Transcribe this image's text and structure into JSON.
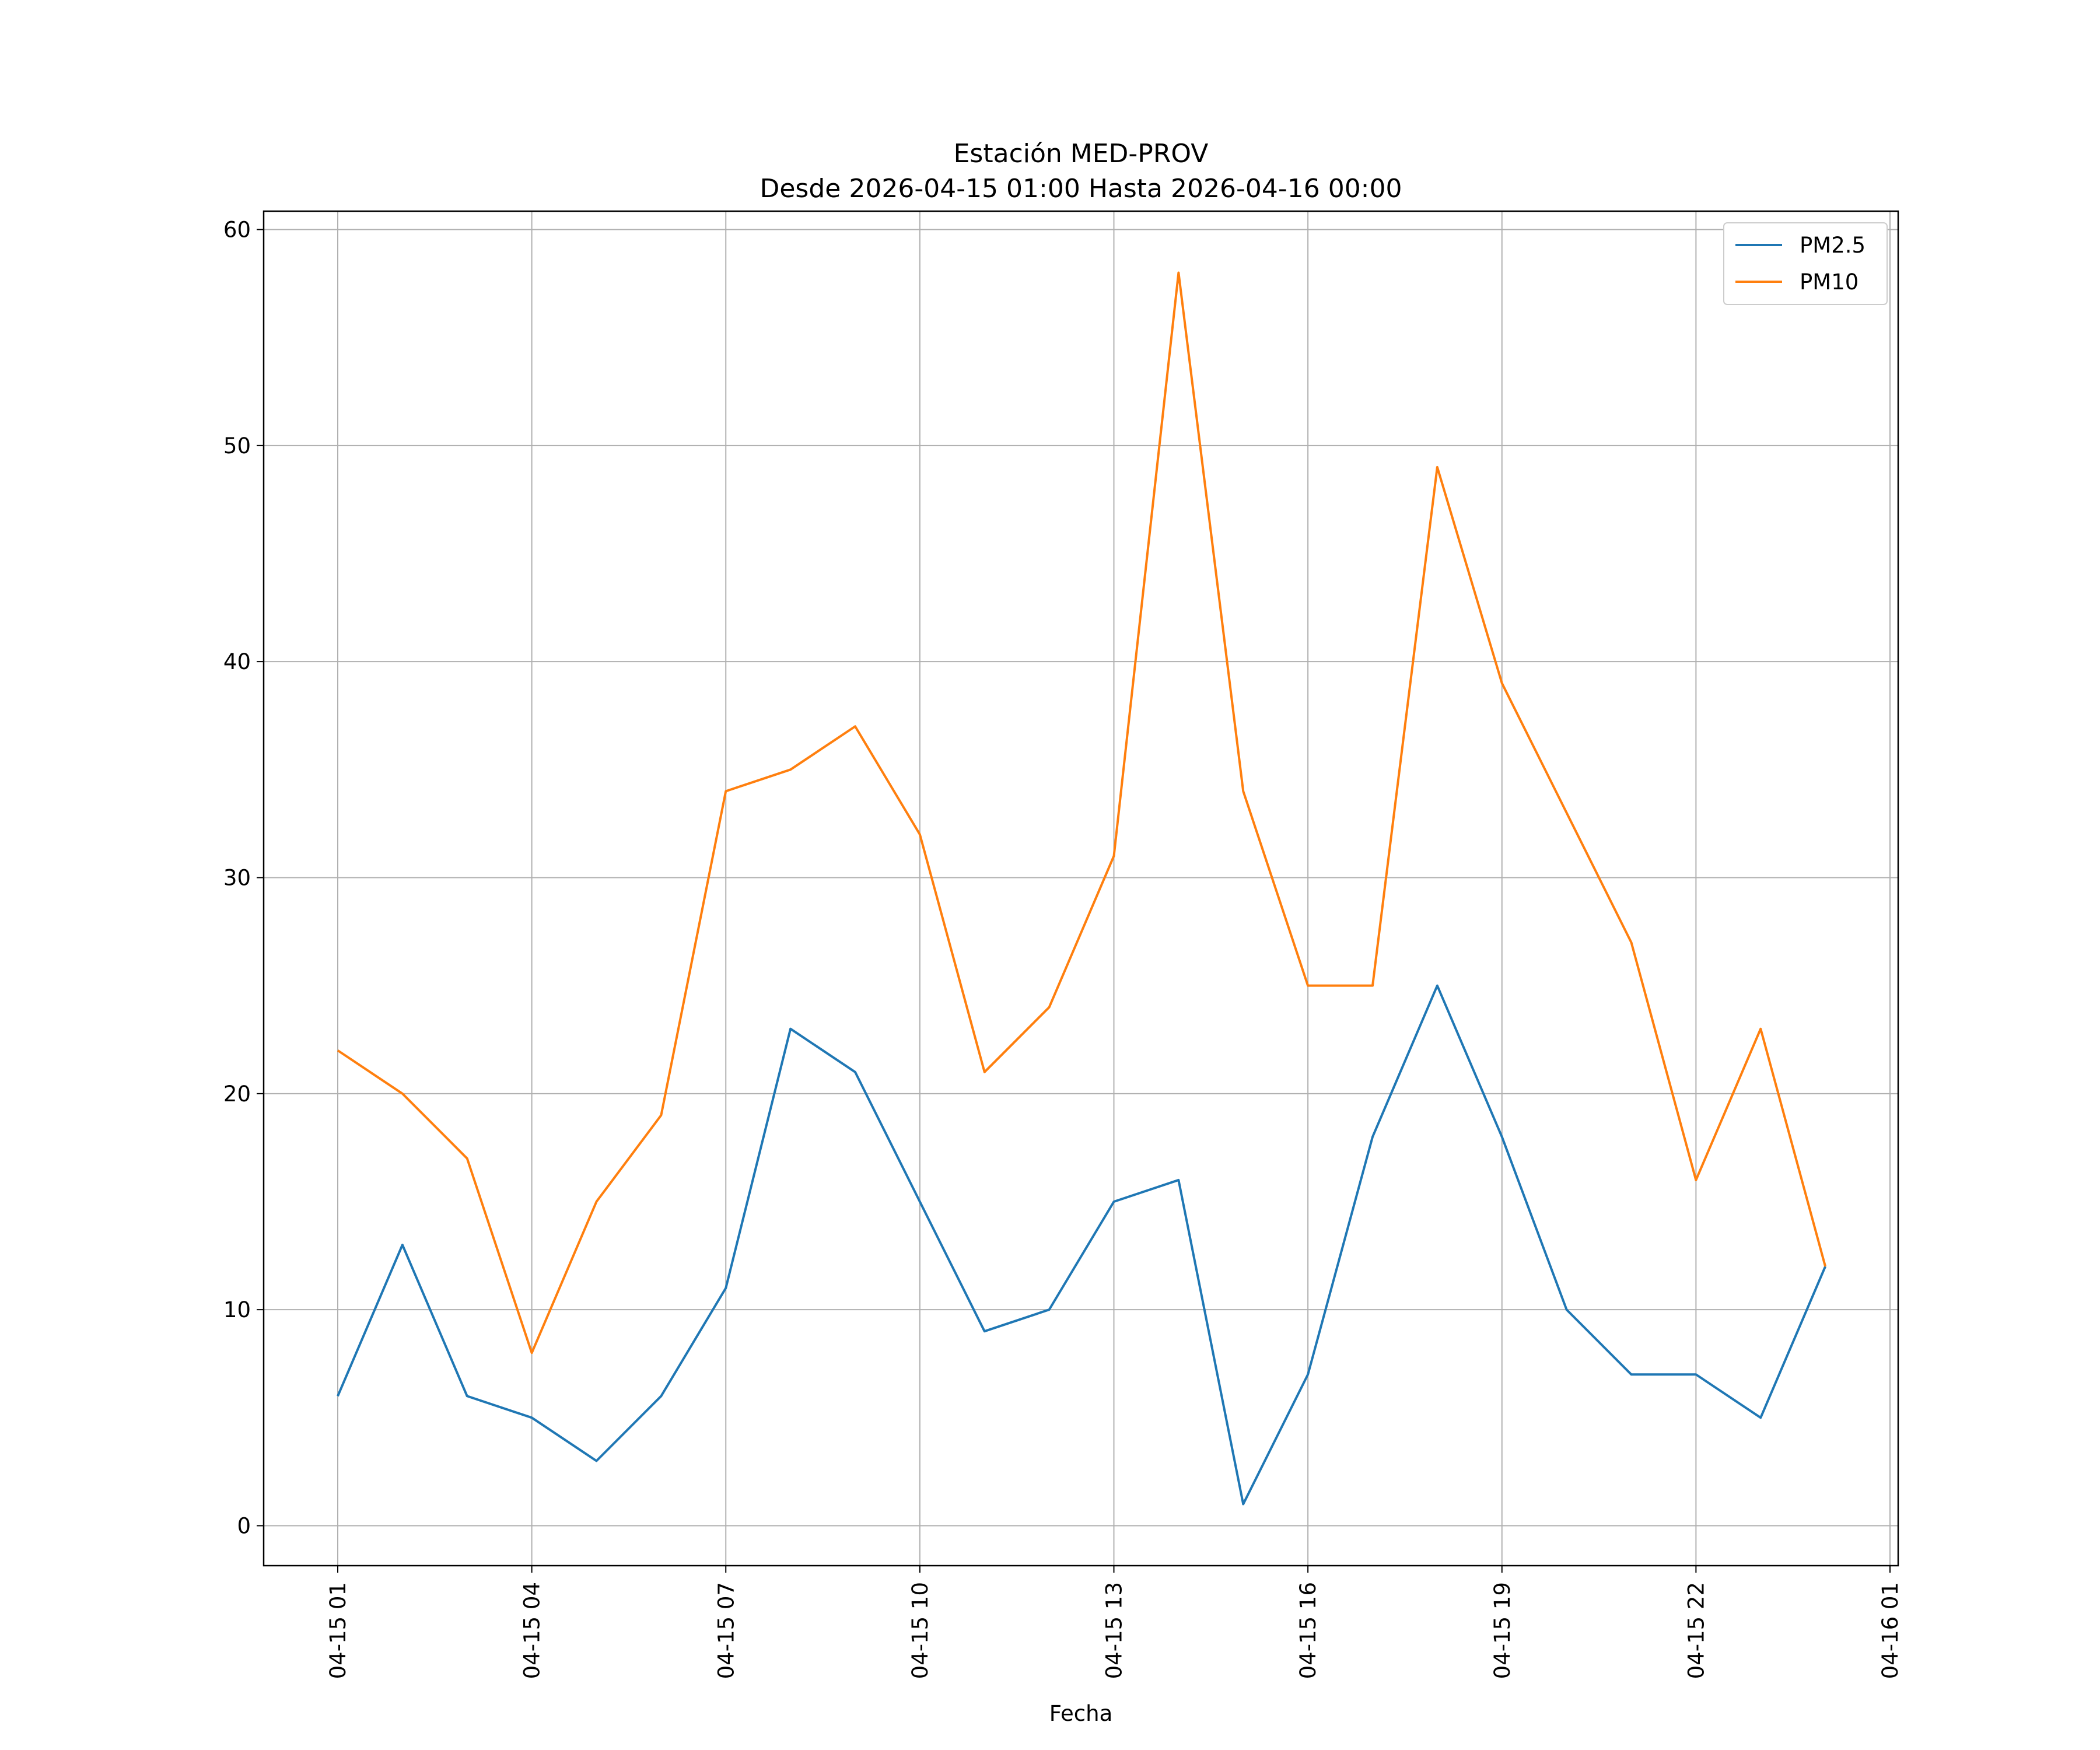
{
  "chart_data": {
    "type": "line",
    "title_line1": "Estación MED-PROV",
    "title_line2": "Desde 2026-04-15 01:00 Hasta 2026-04-16 00:00",
    "xlabel": "Fecha",
    "ylabel": "",
    "x": [
      "04-15 01",
      "04-15 02",
      "04-15 03",
      "04-15 04",
      "04-15 05",
      "04-15 06",
      "04-15 07",
      "04-15 08",
      "04-15 09",
      "04-15 10",
      "04-15 11",
      "04-15 12",
      "04-15 13",
      "04-15 14",
      "04-15 15",
      "04-15 16",
      "04-15 17",
      "04-15 18",
      "04-15 19",
      "04-15 20",
      "04-15 21",
      "04-15 22",
      "04-15 23",
      "04-16 00"
    ],
    "series": [
      {
        "name": "PM2.5",
        "color": "#1f77b4",
        "values": [
          6,
          13,
          6,
          5,
          3,
          6,
          11,
          23,
          21,
          15,
          9,
          10,
          15,
          16,
          1,
          7,
          18,
          25,
          18,
          10,
          7,
          7,
          5,
          12
        ]
      },
      {
        "name": "PM10",
        "color": "#ff7f0e",
        "values": [
          22,
          20,
          17,
          8,
          15,
          19,
          34,
          35,
          37,
          32,
          21,
          24,
          31,
          58,
          34,
          25,
          25,
          49,
          39,
          33,
          27,
          16,
          23,
          12
        ]
      }
    ],
    "xticks": [
      "04-15 01",
      "04-15 04",
      "04-15 07",
      "04-15 10",
      "04-15 13",
      "04-15 16",
      "04-15 19",
      "04-15 22",
      "04-16 01"
    ],
    "yticks": [
      "0",
      "10",
      "20",
      "30",
      "40",
      "50",
      "60"
    ],
    "ylim": [
      -1.85,
      60.85
    ],
    "grid": true,
    "legend_position": "top-right"
  }
}
